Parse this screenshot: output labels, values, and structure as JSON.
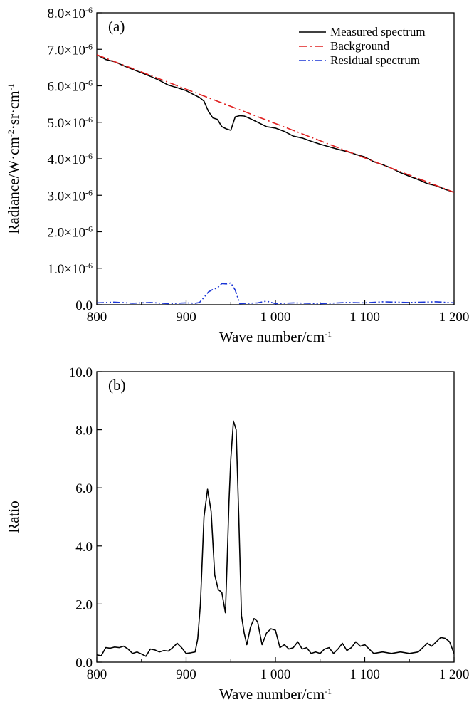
{
  "chart_data": [
    {
      "id": "a",
      "type": "line",
      "panel_label": "(a)",
      "xlabel_text": "Wave number/cm",
      "xlabel_sup": "-1",
      "ylabel_parts": [
        {
          "t": "Radiance/W·cm"
        },
        {
          "t": "-2",
          "sup": true
        },
        {
          "t": "·sr·cm"
        },
        {
          "t": "-1",
          "sup": true
        }
      ],
      "xlim": [
        800,
        1200
      ],
      "ylim": [
        0,
        8e-06
      ],
      "x_ticks": [
        800,
        900,
        1000,
        1100,
        1200
      ],
      "x_tick_labels": [
        "800",
        "900",
        "1 000",
        "1 100",
        "1 200"
      ],
      "y_ticks": [
        0,
        1e-06,
        2e-06,
        3e-06,
        4e-06,
        5e-06,
        6e-06,
        7e-06,
        8e-06
      ],
      "y_tick_labels": [
        {
          "text": "0.0"
        },
        {
          "text": "1.0×10",
          "sup": "-6"
        },
        {
          "text": "2.0×10",
          "sup": "-6"
        },
        {
          "text": "3.0×10",
          "sup": "-6"
        },
        {
          "text": "4.0×10",
          "sup": "-6"
        },
        {
          "text": "5.0×10",
          "sup": "-6"
        },
        {
          "text": "6.0×10",
          "sup": "-6"
        },
        {
          "text": "7.0×10",
          "sup": "-6"
        },
        {
          "text": "8.0×10",
          "sup": "-6"
        }
      ],
      "legend_position": "top-right",
      "series": [
        {
          "name": "Measured spectrum",
          "color": "#000000",
          "dash": "solid",
          "x": [
            800,
            810,
            820,
            830,
            840,
            850,
            860,
            870,
            880,
            890,
            900,
            910,
            915,
            920,
            925,
            930,
            935,
            940,
            945,
            950,
            955,
            960,
            965,
            970,
            980,
            990,
            1000,
            1010,
            1020,
            1030,
            1040,
            1050,
            1060,
            1070,
            1080,
            1090,
            1100,
            1110,
            1120,
            1130,
            1140,
            1150,
            1160,
            1170,
            1180,
            1190,
            1200
          ],
          "y": [
            6.85e-06,
            6.72e-06,
            6.66e-06,
            6.55e-06,
            6.45e-06,
            6.36e-06,
            6.26e-06,
            6.15e-06,
            6.02e-06,
            5.95e-06,
            5.87e-06,
            5.74e-06,
            5.68e-06,
            5.58e-06,
            5.3e-06,
            5.12e-06,
            5.08e-06,
            4.88e-06,
            4.82e-06,
            4.78e-06,
            5.15e-06,
            5.18e-06,
            5.17e-06,
            5.12e-06,
            5e-06,
            4.88e-06,
            4.84e-06,
            4.75e-06,
            4.62e-06,
            4.57e-06,
            4.48e-06,
            4.4e-06,
            4.33e-06,
            4.26e-06,
            4.2e-06,
            4.12e-06,
            4.05e-06,
            3.92e-06,
            3.84e-06,
            3.74e-06,
            3.62e-06,
            3.52e-06,
            3.43e-06,
            3.32e-06,
            3.26e-06,
            3.16e-06,
            3.08e-06
          ]
        },
        {
          "name": "Background",
          "color": "#e02020",
          "dash": "dashdot",
          "x": [
            800,
            1200
          ],
          "y": [
            6.85e-06,
            3.08e-06
          ]
        },
        {
          "name": "Residual spectrum",
          "color": "#1a35d6",
          "dash": "dashdotdot",
          "x": [
            800,
            820,
            840,
            860,
            880,
            900,
            910,
            915,
            920,
            925,
            930,
            935,
            940,
            945,
            950,
            955,
            960,
            980,
            990,
            1000,
            1020,
            1050,
            1080,
            1100,
            1120,
            1150,
            1180,
            1200
          ],
          "y": [
            5e-08,
            7e-08,
            4e-08,
            6e-08,
            3e-08,
            5e-08,
            4e-08,
            6e-08,
            2e-07,
            3.5e-07,
            4.2e-07,
            4.6e-07,
            5.8e-07,
            5.7e-07,
            6e-07,
            4e-07,
            3e-08,
            5e-08,
            1e-07,
            3e-08,
            5e-08,
            3e-08,
            6e-08,
            5e-08,
            8e-08,
            6e-08,
            8e-08,
            5e-08
          ]
        }
      ]
    },
    {
      "id": "b",
      "type": "line",
      "panel_label": "(b)",
      "xlabel_text": "Wave number/cm",
      "xlabel_sup": "-1",
      "ylabel_parts": [
        {
          "t": "Ratio"
        }
      ],
      "xlim": [
        800,
        1200
      ],
      "ylim": [
        0,
        10
      ],
      "x_ticks": [
        800,
        900,
        1000,
        1100,
        1200
      ],
      "x_tick_labels": [
        "800",
        "900",
        "1 000",
        "1 100",
        "1 200"
      ],
      "y_ticks": [
        0,
        2,
        4,
        6,
        8,
        10
      ],
      "y_tick_labels": [
        {
          "text": "0.0"
        },
        {
          "text": "2.0"
        },
        {
          "text": "4.0"
        },
        {
          "text": "6.0"
        },
        {
          "text": "8.0"
        },
        {
          "text": "10.0"
        }
      ],
      "series": [
        {
          "color": "#000000",
          "dash": "solid",
          "x": [
            800,
            805,
            810,
            815,
            820,
            825,
            830,
            835,
            840,
            845,
            850,
            855,
            860,
            865,
            870,
            875,
            880,
            885,
            890,
            895,
            900,
            905,
            910,
            913,
            916,
            920,
            924,
            928,
            932,
            936,
            940,
            944,
            946,
            948,
            950,
            953,
            956,
            959,
            962,
            965,
            968,
            972,
            976,
            980,
            985,
            990,
            995,
            1000,
            1005,
            1010,
            1015,
            1020,
            1025,
            1030,
            1035,
            1040,
            1045,
            1050,
            1055,
            1060,
            1065,
            1070,
            1075,
            1080,
            1085,
            1090,
            1095,
            1100,
            1110,
            1120,
            1130,
            1140,
            1150,
            1160,
            1165,
            1170,
            1175,
            1180,
            1185,
            1190,
            1195,
            1200
          ],
          "y": [
            0.25,
            0.22,
            0.5,
            0.48,
            0.52,
            0.5,
            0.55,
            0.45,
            0.3,
            0.35,
            0.28,
            0.2,
            0.45,
            0.42,
            0.35,
            0.4,
            0.38,
            0.5,
            0.65,
            0.5,
            0.3,
            0.32,
            0.35,
            0.8,
            2.0,
            5.0,
            5.95,
            5.2,
            3.0,
            2.5,
            2.4,
            1.7,
            3.5,
            5.5,
            7.0,
            8.3,
            8.0,
            5.0,
            1.6,
            1.0,
            0.6,
            1.2,
            1.5,
            1.4,
            0.6,
            1.0,
            1.15,
            1.1,
            0.5,
            0.6,
            0.45,
            0.5,
            0.7,
            0.45,
            0.5,
            0.3,
            0.35,
            0.3,
            0.45,
            0.5,
            0.3,
            0.45,
            0.65,
            0.4,
            0.5,
            0.7,
            0.55,
            0.6,
            0.3,
            0.35,
            0.3,
            0.35,
            0.3,
            0.35,
            0.5,
            0.65,
            0.55,
            0.7,
            0.85,
            0.82,
            0.7,
            0.3
          ]
        }
      ]
    }
  ]
}
